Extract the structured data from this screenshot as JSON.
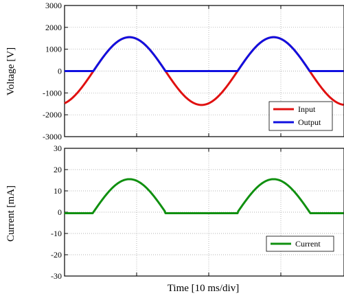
{
  "chart_data": [
    {
      "type": "line",
      "ylabel": "Voltage [V]",
      "xlabel": "",
      "ylim": [
        -3000,
        3000
      ],
      "yticks": [
        3000,
        2000,
        1000,
        0,
        -1000,
        -2000,
        -3000
      ],
      "xlim": [
        0,
        9.3
      ],
      "x_unit": "div (10 ms)",
      "grid": true,
      "legend_placement": "bottom-right",
      "series": [
        {
          "name": "Input",
          "color": "#e01010",
          "shape": "sine",
          "amplitude": 1550,
          "period_div": 2.0,
          "peak_times_div": [
            0.9,
            2.9,
            4.9,
            6.9,
            8.9
          ]
        },
        {
          "name": "Output",
          "color": "#1010e0",
          "shape": "half-wave-rectified-sine",
          "amplitude": 1550,
          "period_div": 2.0,
          "peak_times_div": [
            0.9,
            2.9,
            4.9,
            6.9,
            8.9
          ]
        }
      ]
    },
    {
      "type": "line",
      "ylabel": "Current [mA]",
      "xlabel": "Time [10 ms/div]",
      "ylim": [
        -30,
        30
      ],
      "yticks": [
        30,
        20,
        10,
        0,
        -10,
        -20,
        -30
      ],
      "xlim": [
        0,
        9.3
      ],
      "x_unit": "div (10 ms)",
      "grid": true,
      "legend_placement": "bottom-right",
      "series": [
        {
          "name": "Current",
          "color": "#109010",
          "shape": "half-wave-rectified-sine",
          "amplitude": 15.5,
          "baseline_after_pulse": -0.5,
          "period_div": 2.0,
          "peak_times_div": [
            0.9,
            2.9,
            4.9,
            6.9,
            8.9
          ]
        }
      ]
    }
  ]
}
